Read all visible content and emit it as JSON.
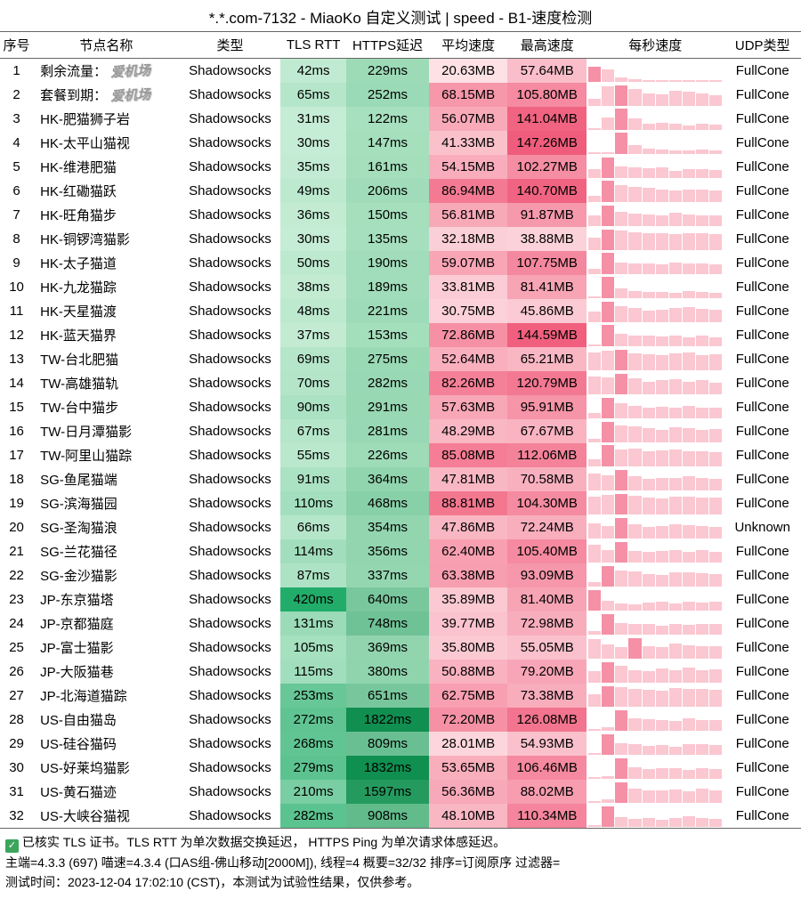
{
  "title": "*.*.com-7132 - MiaoKo 自定义测试 | speed - B1-速度检测",
  "headers": {
    "idx": "序号",
    "name": "节点名称",
    "type": "类型",
    "tls": "TLS RTT",
    "https": "HTTPS延迟",
    "avg": "平均速度",
    "max": "最高速度",
    "bars": "每秒速度",
    "udp": "UDP类型"
  },
  "watermark": "爱机场",
  "style": {
    "tls_scale": {
      "min": 30,
      "max": 420,
      "light": "#c5ecd4",
      "dark": "#21ac69"
    },
    "https_scale": {
      "min": 122,
      "max": 1832,
      "light": "#a7e0be",
      "dark": "#0f8f50"
    },
    "avg_scale": {
      "min": 20,
      "max": 90,
      "light": "#fde2e6",
      "dark": "#f4758f"
    },
    "max_scale": {
      "min": 38,
      "max": 148,
      "light": "#fcd3db",
      "dark": "#f05c7b"
    },
    "bar_light": "#fbc7d1",
    "bar_dark": "#f590a6"
  },
  "rows": [
    {
      "idx": 1,
      "name": "剩余流量：",
      "wm": true,
      "type": "Shadowsocks",
      "tls": "42ms",
      "tls_v": 42,
      "https": "229ms",
      "https_v": 229,
      "avg": "20.63MB",
      "avg_v": 20.63,
      "max": "57.64MB",
      "max_v": 57.64,
      "bars": [
        70,
        58,
        20,
        12,
        10,
        8,
        6,
        5,
        4,
        4
      ],
      "udp": "FullCone"
    },
    {
      "idx": 2,
      "name": "套餐到期：",
      "wm": true,
      "type": "Shadowsocks",
      "tls": "65ms",
      "tls_v": 65,
      "https": "252ms",
      "https_v": 252,
      "avg": "68.15MB",
      "avg_v": 68.15,
      "max": "105.80MB",
      "max_v": 105.8,
      "bars": [
        35,
        90,
        95,
        80,
        60,
        55,
        70,
        65,
        58,
        50
      ],
      "udp": "FullCone"
    },
    {
      "idx": 3,
      "name": "HK-肥猫狮子岩",
      "type": "Shadowsocks",
      "tls": "31ms",
      "tls_v": 31,
      "https": "122ms",
      "https_v": 122,
      "avg": "56.07MB",
      "avg_v": 56.07,
      "max": "141.04MB",
      "max_v": 141.04,
      "bars": [
        10,
        60,
        100,
        55,
        30,
        35,
        28,
        22,
        30,
        25
      ],
      "udp": "FullCone"
    },
    {
      "idx": 4,
      "name": "HK-太平山猫视",
      "type": "Shadowsocks",
      "tls": "30ms",
      "tls_v": 30,
      "https": "147ms",
      "https_v": 147,
      "avg": "41.33MB",
      "avg_v": 41.33,
      "max": "147.26MB",
      "max_v": 147.26,
      "bars": [
        5,
        8,
        100,
        40,
        25,
        20,
        18,
        15,
        20,
        15
      ],
      "udp": "FullCone"
    },
    {
      "idx": 5,
      "name": "HK-维港肥猫",
      "type": "Shadowsocks",
      "tls": "35ms",
      "tls_v": 35,
      "https": "161ms",
      "https_v": 161,
      "avg": "54.15MB",
      "avg_v": 54.15,
      "max": "102.27MB",
      "max_v": 102.27,
      "bars": [
        40,
        95,
        55,
        50,
        45,
        48,
        35,
        40,
        42,
        38
      ],
      "udp": "FullCone"
    },
    {
      "idx": 6,
      "name": "HK-红磡猫跃",
      "type": "Shadowsocks",
      "tls": "49ms",
      "tls_v": 49,
      "https": "206ms",
      "https_v": 206,
      "avg": "86.94MB",
      "avg_v": 86.94,
      "max": "140.70MB",
      "max_v": 140.7,
      "bars": [
        30,
        100,
        80,
        70,
        65,
        60,
        55,
        60,
        58,
        55
      ],
      "udp": "FullCone"
    },
    {
      "idx": 7,
      "name": "HK-旺角猫步",
      "type": "Shadowsocks",
      "tls": "36ms",
      "tls_v": 36,
      "https": "150ms",
      "https_v": 150,
      "avg": "56.81MB",
      "avg_v": 56.81,
      "max": "91.87MB",
      "max_v": 91.87,
      "bars": [
        50,
        95,
        65,
        60,
        55,
        50,
        62,
        55,
        50,
        48
      ],
      "udp": "FullCone"
    },
    {
      "idx": 8,
      "name": "HK-铜锣湾猫影",
      "type": "Shadowsocks",
      "tls": "30ms",
      "tls_v": 30,
      "https": "135ms",
      "https_v": 135,
      "avg": "32.18MB",
      "avg_v": 32.18,
      "max": "38.88MB",
      "max_v": 38.88,
      "bars": [
        60,
        95,
        90,
        85,
        80,
        78,
        75,
        80,
        78,
        75
      ],
      "udp": "FullCone"
    },
    {
      "idx": 9,
      "name": "HK-太子猫道",
      "type": "Shadowsocks",
      "tls": "50ms",
      "tls_v": 50,
      "https": "190ms",
      "https_v": 190,
      "avg": "59.07MB",
      "avg_v": 59.07,
      "max": "107.75MB",
      "max_v": 107.75,
      "bars": [
        25,
        100,
        55,
        48,
        50,
        45,
        55,
        50,
        48,
        45
      ],
      "udp": "FullCone"
    },
    {
      "idx": 10,
      "name": "HK-九龙猫踪",
      "type": "Shadowsocks",
      "tls": "38ms",
      "tls_v": 38,
      "https": "189ms",
      "https_v": 189,
      "avg": "33.81MB",
      "avg_v": 33.81,
      "max": "81.41MB",
      "max_v": 81.41,
      "bars": [
        8,
        100,
        45,
        35,
        28,
        30,
        25,
        32,
        28,
        25
      ],
      "udp": "FullCone"
    },
    {
      "idx": 11,
      "name": "HK-天星猫渡",
      "type": "Shadowsocks",
      "tls": "48ms",
      "tls_v": 48,
      "https": "221ms",
      "https_v": 221,
      "avg": "30.75MB",
      "avg_v": 30.75,
      "max": "45.86MB",
      "max_v": 45.86,
      "bars": [
        50,
        95,
        75,
        68,
        55,
        60,
        65,
        70,
        62,
        60
      ],
      "udp": "FullCone"
    },
    {
      "idx": 12,
      "name": "HK-蓝天猫界",
      "type": "Shadowsocks",
      "tls": "37ms",
      "tls_v": 37,
      "https": "153ms",
      "https_v": 153,
      "avg": "72.86MB",
      "avg_v": 72.86,
      "max": "144.59MB",
      "max_v": 144.59,
      "bars": [
        10,
        100,
        60,
        50,
        48,
        45,
        50,
        42,
        48,
        40
      ],
      "udp": "FullCone"
    },
    {
      "idx": 13,
      "name": "TW-台北肥猫",
      "type": "Shadowsocks",
      "tls": "69ms",
      "tls_v": 69,
      "https": "275ms",
      "https_v": 275,
      "avg": "52.64MB",
      "avg_v": 52.64,
      "max": "65.21MB",
      "max_v": 65.21,
      "bars": [
        85,
        90,
        95,
        80,
        75,
        70,
        78,
        82,
        70,
        75
      ],
      "udp": "FullCone"
    },
    {
      "idx": 14,
      "name": "TW-高雄猫轨",
      "type": "Shadowsocks",
      "tls": "70ms",
      "tls_v": 70,
      "https": "282ms",
      "https_v": 282,
      "avg": "82.26MB",
      "avg_v": 82.26,
      "max": "120.79MB",
      "max_v": 120.79,
      "bars": [
        85,
        80,
        95,
        75,
        60,
        65,
        70,
        60,
        68,
        55
      ],
      "udp": "FullCone"
    },
    {
      "idx": 15,
      "name": "TW-台中猫步",
      "type": "Shadowsocks",
      "tls": "90ms",
      "tls_v": 90,
      "https": "291ms",
      "https_v": 291,
      "avg": "57.63MB",
      "avg_v": 57.63,
      "max": "95.91MB",
      "max_v": 95.91,
      "bars": [
        25,
        95,
        70,
        60,
        50,
        55,
        50,
        58,
        52,
        48
      ],
      "udp": "FullCone"
    },
    {
      "idx": 16,
      "name": "TW-日月潭猫影",
      "type": "Shadowsocks",
      "tls": "67ms",
      "tls_v": 67,
      "https": "281ms",
      "https_v": 281,
      "avg": "48.29MB",
      "avg_v": 48.29,
      "max": "67.67MB",
      "max_v": 67.67,
      "bars": [
        15,
        95,
        80,
        75,
        65,
        60,
        70,
        68,
        60,
        62
      ],
      "udp": "FullCone"
    },
    {
      "idx": 17,
      "name": "TW-阿里山猫踪",
      "type": "Shadowsocks",
      "tls": "55ms",
      "tls_v": 55,
      "https": "226ms",
      "https_v": 226,
      "avg": "85.08MB",
      "avg_v": 85.08,
      "max": "112.06MB",
      "max_v": 112.06,
      "bars": [
        35,
        98,
        80,
        85,
        70,
        75,
        78,
        70,
        72,
        68
      ],
      "udp": "FullCone"
    },
    {
      "idx": 18,
      "name": "SG-鱼尾猫端",
      "type": "Shadowsocks",
      "tls": "91ms",
      "tls_v": 91,
      "https": "364ms",
      "https_v": 364,
      "avg": "47.81MB",
      "avg_v": 47.81,
      "max": "70.58MB",
      "max_v": 70.58,
      "bars": [
        80,
        70,
        95,
        65,
        55,
        60,
        58,
        65,
        60,
        55
      ],
      "udp": "FullCone"
    },
    {
      "idx": 19,
      "name": "SG-滨海猫园",
      "type": "Shadowsocks",
      "tls": "110ms",
      "tls_v": 110,
      "https": "468ms",
      "https_v": 468,
      "avg": "88.81MB",
      "avg_v": 88.81,
      "max": "104.30MB",
      "max_v": 104.3,
      "bars": [
        85,
        90,
        95,
        88,
        80,
        75,
        82,
        85,
        78,
        80
      ],
      "udp": "FullCone"
    },
    {
      "idx": 20,
      "name": "SG-圣淘猫浪",
      "type": "Shadowsocks",
      "tls": "66ms",
      "tls_v": 66,
      "https": "354ms",
      "https_v": 354,
      "avg": "47.86MB",
      "avg_v": 47.86,
      "max": "72.24MB",
      "max_v": 72.24,
      "bars": [
        70,
        60,
        95,
        68,
        55,
        60,
        65,
        62,
        58,
        55
      ],
      "udp": "Unknown"
    },
    {
      "idx": 21,
      "name": "SG-兰花猫径",
      "type": "Shadowsocks",
      "tls": "114ms",
      "tls_v": 114,
      "https": "356ms",
      "https_v": 356,
      "avg": "62.40MB",
      "avg_v": 62.4,
      "max": "105.40MB",
      "max_v": 105.4,
      "bars": [
        85,
        60,
        95,
        55,
        50,
        55,
        60,
        48,
        58,
        50
      ],
      "udp": "FullCone"
    },
    {
      "idx": 22,
      "name": "SG-金沙猫影",
      "type": "Shadowsocks",
      "tls": "87ms",
      "tls_v": 87,
      "https": "337ms",
      "https_v": 337,
      "avg": "63.38MB",
      "avg_v": 63.38,
      "max": "93.09MB",
      "max_v": 93.09,
      "bars": [
        20,
        95,
        75,
        70,
        60,
        55,
        65,
        68,
        62,
        58
      ],
      "udp": "FullCone"
    },
    {
      "idx": 23,
      "name": "JP-东京猫塔",
      "type": "Shadowsocks",
      "tls": "420ms",
      "tls_v": 420,
      "https": "640ms",
      "https_v": 640,
      "avg": "35.89MB",
      "avg_v": 35.89,
      "max": "81.40MB",
      "max_v": 81.4,
      "bars": [
        95,
        45,
        35,
        30,
        38,
        40,
        35,
        42,
        38,
        40
      ],
      "udp": "FullCone"
    },
    {
      "idx": 24,
      "name": "JP-京都猫庭",
      "type": "Shadowsocks",
      "tls": "131ms",
      "tls_v": 131,
      "https": "748ms",
      "https_v": 748,
      "avg": "39.77MB",
      "avg_v": 39.77,
      "max": "72.98MB",
      "max_v": 72.98,
      "bars": [
        15,
        95,
        55,
        48,
        50,
        42,
        52,
        45,
        50,
        48
      ],
      "udp": "FullCone"
    },
    {
      "idx": 25,
      "name": "JP-富士猫影",
      "type": "Shadowsocks",
      "tls": "105ms",
      "tls_v": 105,
      "https": "369ms",
      "https_v": 369,
      "avg": "35.80MB",
      "avg_v": 35.8,
      "max": "55.05MB",
      "max_v": 55.05,
      "bars": [
        90,
        65,
        55,
        95,
        60,
        55,
        70,
        62,
        58,
        60
      ],
      "udp": "FullCone"
    },
    {
      "idx": 26,
      "name": "JP-大阪猫巷",
      "type": "Shadowsocks",
      "tls": "115ms",
      "tls_v": 115,
      "https": "380ms",
      "https_v": 380,
      "avg": "50.88MB",
      "avg_v": 50.88,
      "max": "79.20MB",
      "max_v": 79.2,
      "bars": [
        55,
        95,
        80,
        60,
        55,
        65,
        60,
        70,
        58,
        62
      ],
      "udp": "FullCone"
    },
    {
      "idx": 27,
      "name": "JP-北海道猫踪",
      "type": "Shadowsocks",
      "tls": "253ms",
      "tls_v": 253,
      "https": "651ms",
      "https_v": 651,
      "avg": "62.75MB",
      "avg_v": 62.75,
      "max": "73.38MB",
      "max_v": 73.38,
      "bars": [
        60,
        95,
        90,
        85,
        80,
        75,
        88,
        82,
        85,
        78
      ],
      "udp": "FullCone"
    },
    {
      "idx": 28,
      "name": "US-自由猫岛",
      "type": "Shadowsocks",
      "tls": "272ms",
      "tls_v": 272,
      "https": "1822ms",
      "https_v": 1822,
      "avg": "72.20MB",
      "avg_v": 72.2,
      "max": "126.08MB",
      "max_v": 126.08,
      "bars": [
        8,
        15,
        95,
        60,
        55,
        50,
        45,
        58,
        52,
        48
      ],
      "udp": "FullCone"
    },
    {
      "idx": 29,
      "name": "US-硅谷猫码",
      "type": "Shadowsocks",
      "tls": "268ms",
      "tls_v": 268,
      "https": "809ms",
      "https_v": 809,
      "avg": "28.01MB",
      "avg_v": 28.01,
      "max": "54.93MB",
      "max_v": 54.93,
      "bars": [
        5,
        95,
        55,
        50,
        42,
        45,
        38,
        48,
        50,
        45
      ],
      "udp": "FullCone"
    },
    {
      "idx": 30,
      "name": "US-好莱坞猫影",
      "type": "Shadowsocks",
      "tls": "279ms",
      "tls_v": 279,
      "https": "1832ms",
      "https_v": 1832,
      "avg": "53.65MB",
      "avg_v": 53.65,
      "max": "106.46MB",
      "max_v": 106.46,
      "bars": [
        6,
        12,
        95,
        55,
        45,
        50,
        48,
        40,
        52,
        45
      ],
      "udp": "FullCone"
    },
    {
      "idx": 31,
      "name": "US-黄石猫迹",
      "type": "Shadowsocks",
      "tls": "210ms",
      "tls_v": 210,
      "https": "1597ms",
      "https_v": 1597,
      "avg": "56.36MB",
      "avg_v": 56.36,
      "max": "88.02MB",
      "max_v": 88.02,
      "bars": [
        8,
        18,
        95,
        68,
        60,
        58,
        62,
        55,
        65,
        58
      ],
      "udp": "FullCone"
    },
    {
      "idx": 32,
      "name": "US-大峡谷猫视",
      "type": "Shadowsocks",
      "tls": "282ms",
      "tls_v": 282,
      "https": "908ms",
      "https_v": 908,
      "avg": "48.10MB",
      "avg_v": 48.1,
      "max": "110.34MB",
      "max_v": 110.34,
      "bars": [
        5,
        95,
        45,
        38,
        40,
        35,
        42,
        48,
        40,
        38
      ],
      "udp": "FullCone"
    }
  ],
  "footer": {
    "line1": "已核实 TLS 证书。TLS RTT 为单次数据交换延迟， HTTPS Ping 为单次请求体感延迟。",
    "line2": "主端=4.3.3 (697) 喵速=4.3.4 (口AS组-佛山移动[2000M]), 线程=4 概要=32/32 排序=订阅原序 过滤器=",
    "line3": "测试时间：2023-12-04 17:02:10 (CST)，本测试为试验性结果，仅供参考。"
  }
}
